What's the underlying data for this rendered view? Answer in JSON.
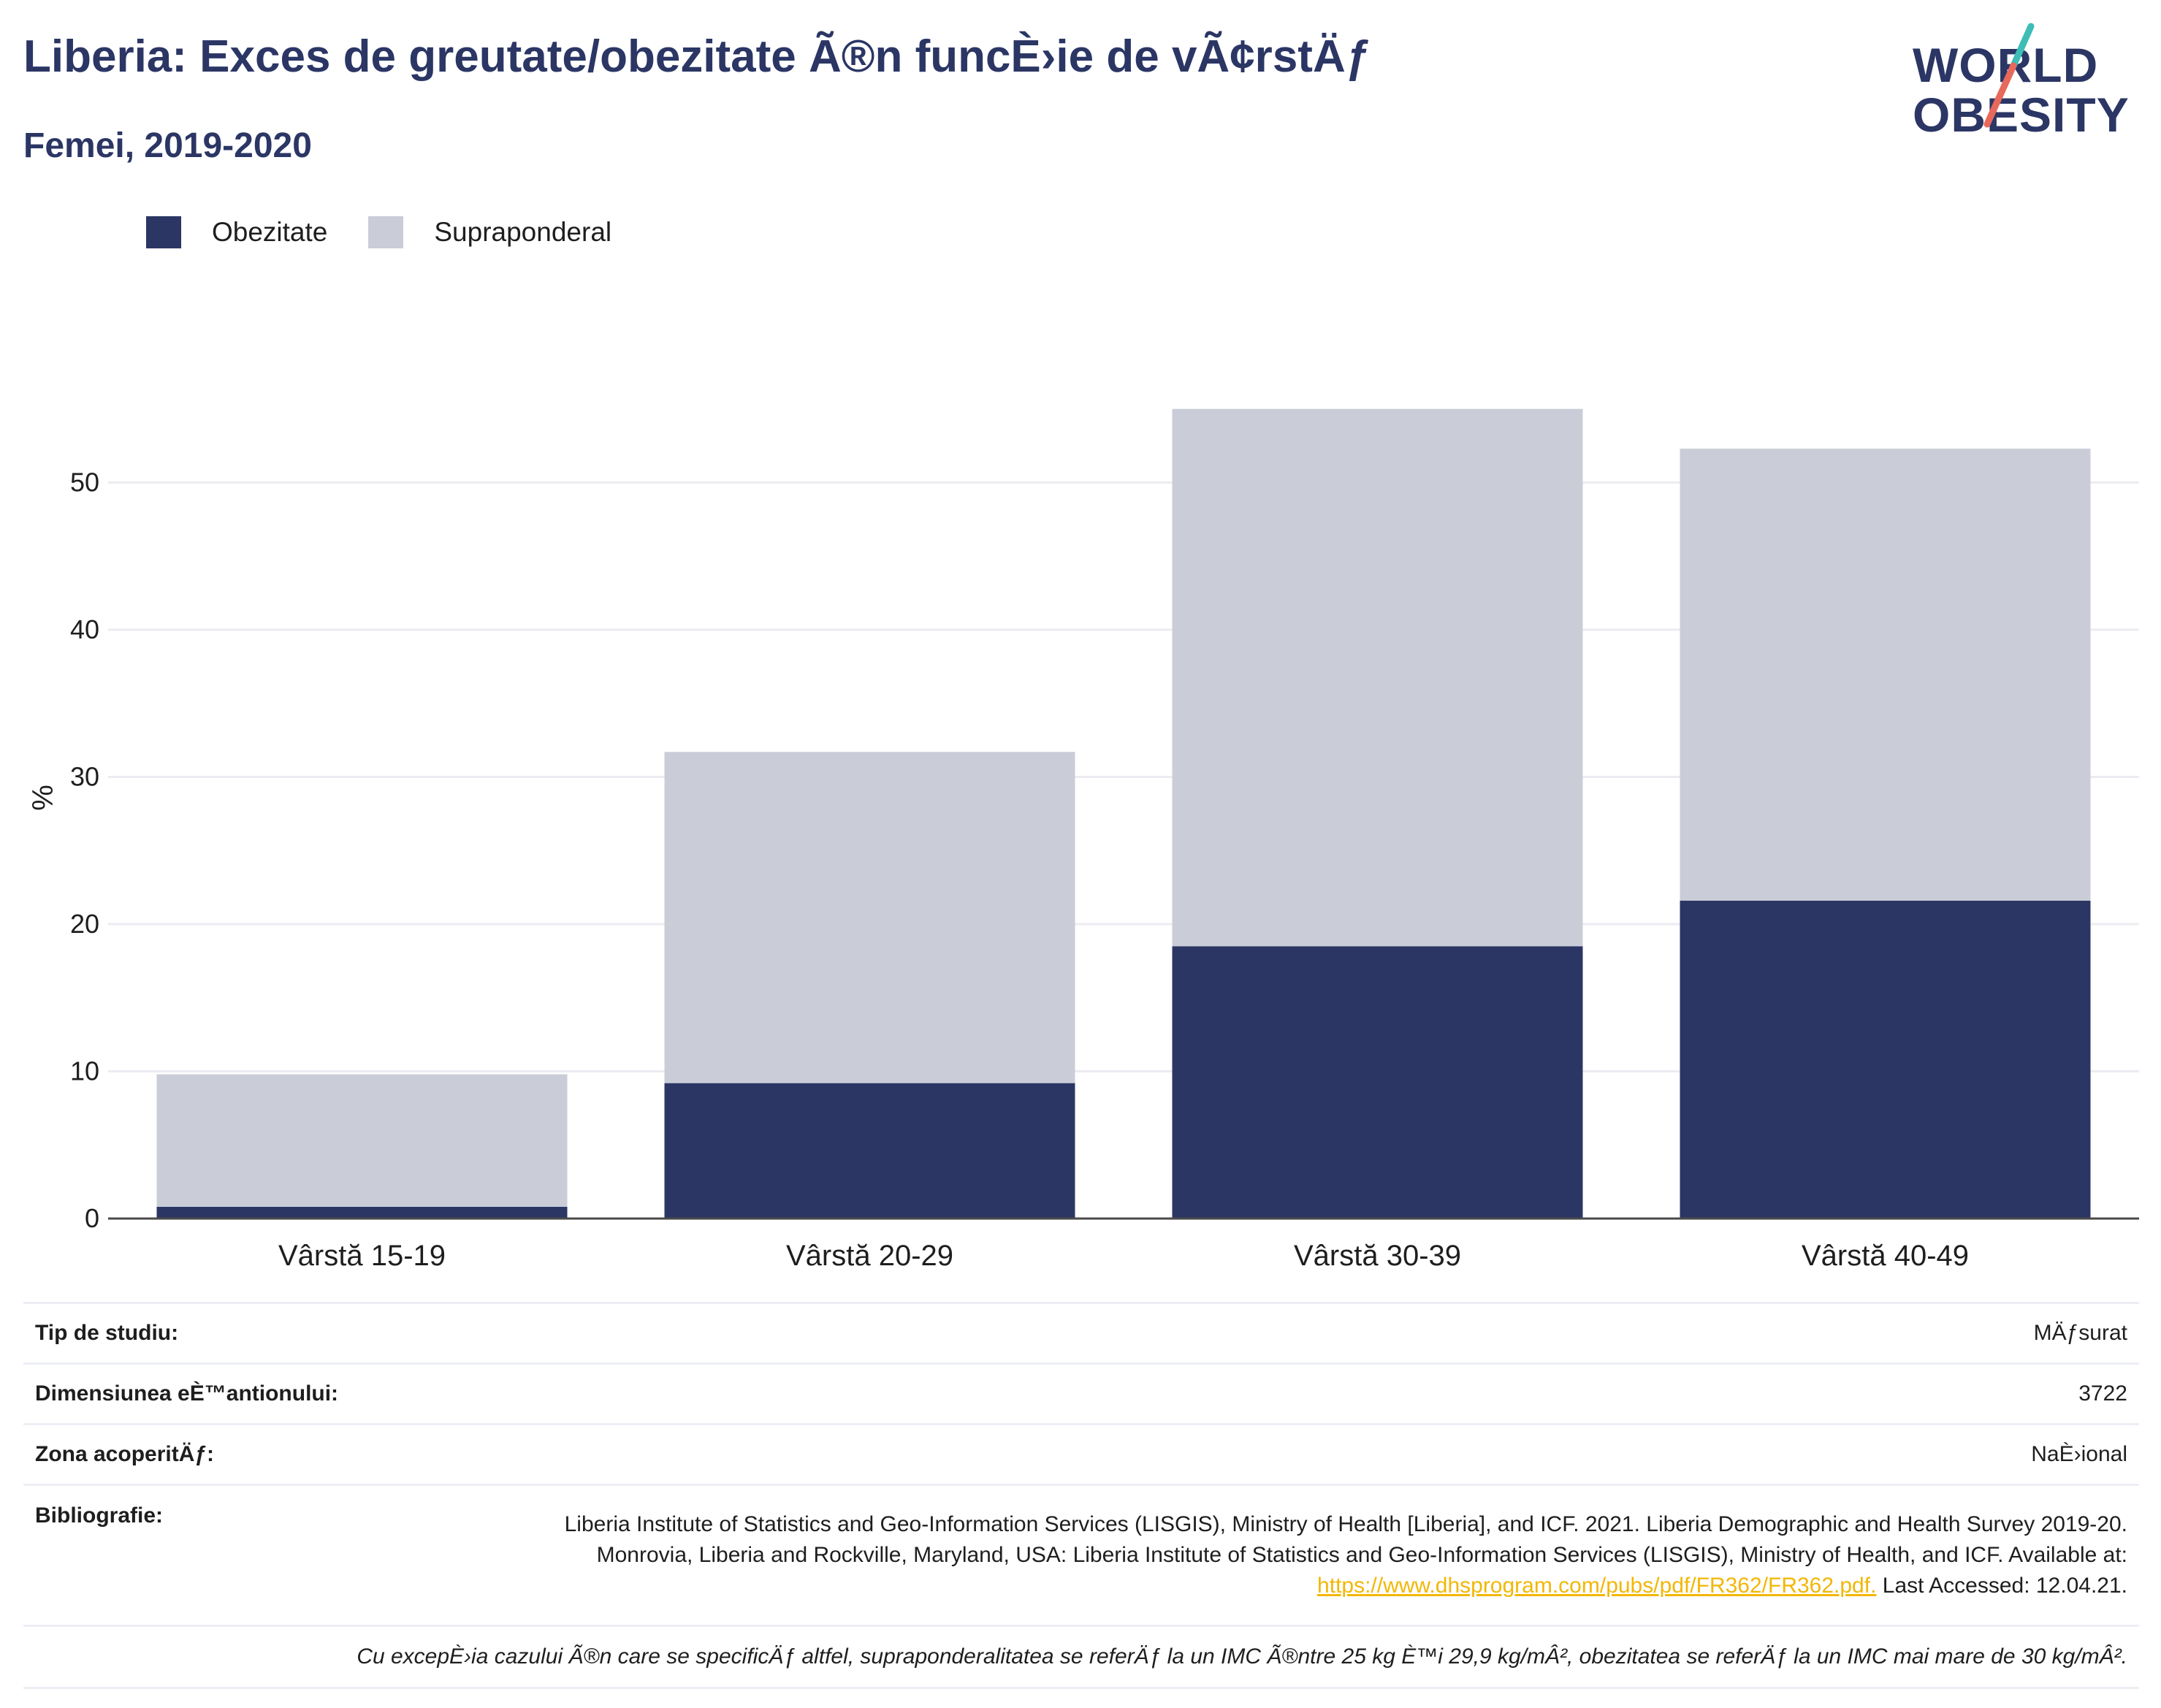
{
  "header": {
    "title": "Liberia: Exces de greutate/obezitate Ã®n funcÈ›ie de vÃ¢rstÄƒ",
    "subtitle": "Femei, 2019-2020"
  },
  "logo": {
    "line1": "WORLD",
    "line2": "OBESITY"
  },
  "colors": {
    "obesity": "#2b3665",
    "overweight": "#cacdd8",
    "title": "#2b3665",
    "accent_teal": "#3dbdb6",
    "accent_red": "#e8685b",
    "link": "#f2b705"
  },
  "chart_data": {
    "type": "bar",
    "stacked": true,
    "categories": [
      "Vârstă 15-19",
      "Vârstă 20-29",
      "Vârstă 30-39",
      "Vârstă 40-49"
    ],
    "series": [
      {
        "name": "Obezitate",
        "values": [
          0.8,
          9.2,
          18.5,
          21.6
        ],
        "color": "#2b3665"
      },
      {
        "name": "Supraponderal",
        "values": [
          9.0,
          22.5,
          36.5,
          30.7
        ],
        "color": "#cacdd8"
      }
    ],
    "ylabel": "%",
    "xlabel": "",
    "ylim": [
      0,
      58
    ],
    "yticks": [
      0,
      10,
      20,
      30,
      40,
      50
    ],
    "grid": true,
    "legend_position": "top-left"
  },
  "info": {
    "rows": [
      {
        "label": "Tip de studiu:",
        "value": "MÄƒsurat"
      },
      {
        "label": "Dimensiunea eÈ™antionului:",
        "value": "3722"
      },
      {
        "label": "Zona acoperitÄƒ:",
        "value": "NaÈ›ional"
      }
    ],
    "bibliography": {
      "label": "Bibliografie:",
      "text_before": "Liberia Institute of Statistics and Geo-Information Services (LISGIS), Ministry of Health [Liberia], and ICF. 2021. Liberia Demographic and Health Survey 2019-20. Monrovia, Liberia and Rockville, Maryland, USA: Liberia Institute of Statistics and Geo-Information Services (LISGIS), Ministry of Health, and ICF. Available at: ",
      "link": "https://www.dhsprogram.com/pubs/pdf/FR362/FR362.pdf.",
      "text_after": " Last Accessed: 12.04.21."
    },
    "footnote": "Cu excepÈ›ia cazului Ã®n care se specificÄƒ altfel, supraponderalitatea se referÄƒ la un IMC Ã®ntre 25 kg È™i 29,9 kg/mÂ², obezitatea se referÄƒ la un IMC mai mare de 30 kg/mÂ²."
  }
}
